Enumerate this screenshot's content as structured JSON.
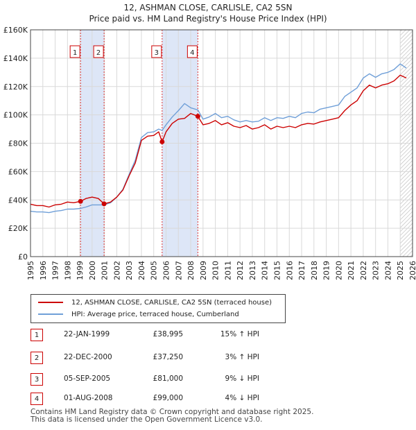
{
  "title_line1": "12, ASHMAN CLOSE, CARLISLE, CA2 5SN",
  "title_line2": "Price paid vs. HM Land Registry's House Price Index (HPI)",
  "legend": {
    "property_label": "12, ASHMAN CLOSE, CARLISLE, CA2 5SN (terraced house)",
    "hpi_label": "HPI: Average price, terraced house, Cumberland"
  },
  "colors": {
    "property": "#cc0000",
    "hpi": "#6f9fd8",
    "shade": "#dde6f7",
    "grid": "#d9d9d9"
  },
  "transactions": [
    {
      "num": "1",
      "date": "22-JAN-1999",
      "price": "£38,995",
      "hpi": "15% ↑ HPI"
    },
    {
      "num": "2",
      "date": "22-DEC-2000",
      "price": "£37,250",
      "hpi": "3% ↑ HPI"
    },
    {
      "num": "3",
      "date": "05-SEP-2005",
      "price": "£81,000",
      "hpi": "9% ↓ HPI"
    },
    {
      "num": "4",
      "date": "01-AUG-2008",
      "price": "£99,000",
      "hpi": "4% ↓ HPI"
    }
  ],
  "footer": {
    "line1": "Contains HM Land Registry data © Crown copyright and database right 2025.",
    "line2": "This data is licensed under the Open Government Licence v3.0."
  },
  "chart_data": {
    "type": "line",
    "title": "12, ASHMAN CLOSE, CARLISLE, CA2 5SN — Price paid vs. HM Land Registry's House Price Index (HPI)",
    "xlabel": "",
    "ylabel": "",
    "xlim": [
      1995,
      2026
    ],
    "ylim": [
      0,
      160000
    ],
    "y_ticks": [
      {
        "value": 0,
        "label": "£0"
      },
      {
        "value": 20000,
        "label": "£20K"
      },
      {
        "value": 40000,
        "label": "£40K"
      },
      {
        "value": 60000,
        "label": "£60K"
      },
      {
        "value": 80000,
        "label": "£80K"
      },
      {
        "value": 100000,
        "label": "£100K"
      },
      {
        "value": 120000,
        "label": "£120K"
      },
      {
        "value": 140000,
        "label": "£140K"
      },
      {
        "value": 160000,
        "label": "£160K"
      }
    ],
    "x_ticks": [
      "1995",
      "1996",
      "1997",
      "1998",
      "1999",
      "2000",
      "2001",
      "2002",
      "2003",
      "2004",
      "2005",
      "2006",
      "2007",
      "2008",
      "2009",
      "2010",
      "2011",
      "2012",
      "2013",
      "2014",
      "2015",
      "2016",
      "2017",
      "2018",
      "2019",
      "2020",
      "2021",
      "2022",
      "2023",
      "2024",
      "2025",
      "2026"
    ],
    "shaded_periods": [
      [
        1999.06,
        2000.97
      ],
      [
        2005.68,
        2008.58
      ]
    ],
    "hatched_after": 2025.0,
    "sale_markers": [
      {
        "label": "1",
        "x": 1999.06,
        "y": 38995
      },
      {
        "label": "2",
        "x": 2000.97,
        "y": 37250
      },
      {
        "label": "3",
        "x": 2005.68,
        "y": 81000
      },
      {
        "label": "4",
        "x": 2008.58,
        "y": 99000
      }
    ],
    "series": [
      {
        "name": "12, ASHMAN CLOSE, CARLISLE, CA2 5SN (terraced house)",
        "x": [
          1995.0,
          1995.5,
          1996.0,
          1996.5,
          1997.0,
          1997.5,
          1998.0,
          1998.5,
          1999.06,
          1999.5,
          2000.0,
          2000.5,
          2000.97,
          2001.5,
          2002.0,
          2002.5,
          2003.0,
          2003.5,
          2004.0,
          2004.5,
          2005.0,
          2005.4,
          2005.68,
          2006.0,
          2006.5,
          2007.0,
          2007.5,
          2008.0,
          2008.58,
          2009.0,
          2009.5,
          2010.0,
          2010.5,
          2011.0,
          2011.5,
          2012.0,
          2012.5,
          2013.0,
          2013.5,
          2014.0,
          2014.5,
          2015.0,
          2015.5,
          2016.0,
          2016.5,
          2017.0,
          2017.5,
          2018.0,
          2018.5,
          2019.0,
          2019.5,
          2020.0,
          2020.5,
          2021.0,
          2021.5,
          2022.0,
          2022.5,
          2023.0,
          2023.5,
          2024.0,
          2024.5,
          2025.0,
          2025.5
        ],
        "values": [
          37000,
          36000,
          36000,
          35000,
          36500,
          37000,
          38500,
          38000,
          38995,
          41000,
          42000,
          41000,
          37250,
          38500,
          42000,
          47000,
          57000,
          66000,
          82000,
          85000,
          85500,
          88000,
          81000,
          88000,
          94000,
          97000,
          97500,
          101000,
          99000,
          93000,
          94000,
          96000,
          93000,
          94500,
          92000,
          91000,
          92500,
          90000,
          91000,
          93000,
          90000,
          92000,
          91000,
          92000,
          91000,
          93000,
          94000,
          93500,
          95000,
          96000,
          97000,
          98000,
          103000,
          107000,
          110000,
          117000,
          121000,
          119000,
          121000,
          122000,
          124000,
          128000,
          126000
        ]
      },
      {
        "name": "HPI: Average price, terraced house, Cumberland",
        "x": [
          1995.0,
          1995.5,
          1996.0,
          1996.5,
          1997.0,
          1997.5,
          1998.0,
          1998.5,
          1999.06,
          1999.5,
          2000.0,
          2000.5,
          2000.97,
          2001.5,
          2002.0,
          2002.5,
          2003.0,
          2003.5,
          2004.0,
          2004.5,
          2005.0,
          2005.4,
          2005.68,
          2006.0,
          2006.5,
          2007.0,
          2007.5,
          2008.0,
          2008.58,
          2009.0,
          2009.5,
          2010.0,
          2010.5,
          2011.0,
          2011.5,
          2012.0,
          2012.5,
          2013.0,
          2013.5,
          2014.0,
          2014.5,
          2015.0,
          2015.5,
          2016.0,
          2016.5,
          2017.0,
          2017.5,
          2018.0,
          2018.5,
          2019.0,
          2019.5,
          2020.0,
          2020.5,
          2021.0,
          2021.5,
          2022.0,
          2022.5,
          2023.0,
          2023.5,
          2024.0,
          2024.5,
          2025.0,
          2025.5
        ],
        "values": [
          32000,
          31500,
          31500,
          31000,
          32000,
          32500,
          33500,
          33500,
          34000,
          35000,
          36500,
          36500,
          36500,
          38000,
          42000,
          47500,
          58000,
          68000,
          84000,
          87500,
          88000,
          90000,
          89000,
          93000,
          98500,
          103000,
          108000,
          105000,
          103500,
          97000,
          98500,
          101000,
          98000,
          99000,
          96500,
          95000,
          96000,
          95000,
          95500,
          98000,
          96000,
          98000,
          97500,
          99000,
          98000,
          101000,
          102000,
          101500,
          104000,
          105000,
          106000,
          107000,
          113000,
          116000,
          119000,
          126000,
          129000,
          126500,
          129000,
          130000,
          132000,
          136000,
          133000
        ]
      }
    ]
  }
}
